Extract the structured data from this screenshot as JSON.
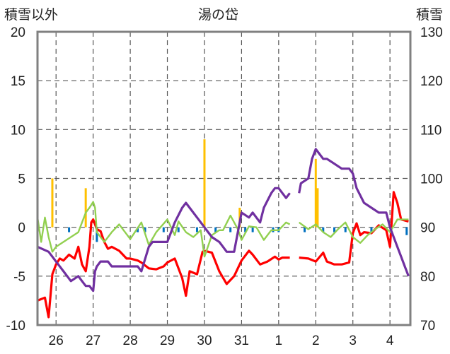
{
  "chart_data": {
    "type": "line",
    "title": "湯の岱",
    "ylabel_left": "積雪以外",
    "ylabel_right": "積雪",
    "xtick_labels": [
      "26",
      "27",
      "28",
      "29",
      "30",
      "31",
      "1",
      "2",
      "3",
      "4"
    ],
    "ylim_left": [
      -10,
      20
    ],
    "ylim_right": [
      70,
      130
    ],
    "yticks_left": [
      20,
      15,
      10,
      5,
      0,
      -5,
      -10
    ],
    "yticks_right": [
      130,
      120,
      110,
      100,
      90,
      80,
      70
    ],
    "grid": true,
    "colors": {
      "red": "#ff0000",
      "green": "#92d050",
      "purple": "#7030a0",
      "orange": "#ffc000",
      "blue": "#0070c0",
      "frame": "#808080"
    },
    "series": [
      {
        "color": "red",
        "axis": "left",
        "x": [
          25.5,
          25.7,
          25.8,
          25.9,
          26.0,
          26.1,
          26.2,
          26.35,
          26.5,
          26.6,
          26.7,
          26.8,
          26.9,
          26.95,
          27.0,
          27.1,
          27.2,
          27.3,
          27.4,
          27.5,
          27.7,
          27.9,
          28.0,
          28.2,
          28.3,
          28.5,
          28.7,
          28.9,
          29.0,
          29.2,
          29.4,
          29.5,
          29.6,
          29.8,
          29.95,
          30.0,
          30.2,
          30.4,
          30.6,
          30.8,
          31.0,
          31.2,
          31.3,
          31.5,
          31.7,
          31.9,
          32.0,
          32.1,
          32.3
        ],
        "y": [
          -7.5,
          -7.2,
          -9.2,
          -4.8,
          -3.8,
          -3.2,
          -3.4,
          -2.8,
          -3.2,
          -2.0,
          -3.8,
          -4.5,
          -2.0,
          0.5,
          0.8,
          -0.2,
          -0.4,
          -1.5,
          -2.2,
          -2.0,
          -2.4,
          -3.2,
          -3.2,
          -3.4,
          -3.6,
          -4.2,
          -4.3,
          -4.0,
          -3.6,
          -3.2,
          -5.2,
          -7.0,
          -4.5,
          -4.8,
          -2.5,
          -2.4,
          -2.6,
          -4.5,
          -5.8,
          -5.0,
          -3.4,
          -2.4,
          -2.8,
          -3.8,
          -3.5,
          -3.0,
          -3.3,
          -3.1,
          -3.1
        ]
      },
      {
        "color": "red",
        "axis": "left",
        "x": [
          32.55,
          32.8,
          33.0,
          33.2,
          33.3,
          33.5,
          33.7,
          33.9,
          34.0,
          34.1,
          34.2,
          34.3,
          34.5,
          34.7,
          34.9,
          35.0,
          35.1,
          35.2,
          35.3,
          35.5
        ],
        "y": [
          -3.1,
          -3.2,
          -3.5,
          -2.6,
          -3.5,
          -3.8,
          -3.8,
          -3.6,
          -0.6,
          0.4,
          -0.8,
          -0.5,
          -0.6,
          0.2,
          -0.3,
          -2.0,
          3.6,
          2.5,
          0.8,
          0.6
        ]
      },
      {
        "color": "green",
        "axis": "left",
        "x": [
          25.5,
          25.6,
          25.7,
          25.8,
          25.9,
          26.0,
          26.2,
          26.4,
          26.6,
          26.8,
          26.9,
          27.0,
          27.05,
          27.1,
          27.2,
          27.3,
          27.5,
          27.7,
          28.0,
          28.3,
          28.5,
          28.7,
          29.0,
          29.2,
          29.3,
          29.5,
          29.7,
          29.9,
          30.0,
          30.2,
          30.4,
          30.5,
          30.7,
          30.9,
          31.0,
          31.2,
          31.4,
          31.6,
          31.8,
          32.0,
          32.2,
          32.3
        ],
        "y": [
          1.0,
          -1.5,
          1.0,
          -1.0,
          -2.5,
          -2.0,
          -1.5,
          -1.0,
          -0.5,
          1.5,
          2.0,
          2.6,
          2.0,
          -0.5,
          -1.0,
          -1.5,
          -0.5,
          0.3,
          -1.2,
          0.5,
          -1.8,
          -0.5,
          0.8,
          -0.8,
          0.6,
          -0.5,
          -1.0,
          -0.3,
          -3.0,
          -0.8,
          -0.3,
          -0.3,
          1.2,
          -0.2,
          -1.3,
          0.1,
          0.0,
          -1.3,
          -0.3,
          -0.3,
          0.5,
          0.3
        ]
      },
      {
        "color": "green",
        "axis": "left",
        "x": [
          32.55,
          32.8,
          33.0,
          33.2,
          33.4,
          33.6,
          33.8,
          34.0,
          34.2,
          34.4,
          34.6,
          34.8,
          35.0,
          35.2,
          35.5
        ],
        "y": [
          0.5,
          -0.2,
          0.3,
          -0.5,
          -1.0,
          -0.2,
          0.5,
          -1.0,
          -1.6,
          -0.8,
          -0.2,
          0.3,
          -0.5,
          0.8,
          0.8
        ]
      },
      {
        "color": "purple",
        "axis": "right",
        "x": [
          25.5,
          25.8,
          26.0,
          26.2,
          26.4,
          26.6,
          26.7,
          26.8,
          26.9,
          27.0,
          27.05,
          27.1,
          27.2,
          27.4,
          27.5,
          27.7,
          28.0,
          28.2,
          28.3,
          28.5,
          28.6,
          28.8,
          28.9,
          29.0,
          29.2,
          29.4,
          29.5,
          29.6,
          29.8,
          30.0,
          30.1,
          30.2,
          30.4,
          30.5,
          30.6,
          30.8,
          31.0,
          31.2,
          31.3,
          31.5,
          31.6,
          31.8,
          31.9,
          32.0,
          32.2,
          32.3
        ],
        "y": [
          86,
          85,
          83,
          81,
          79,
          80,
          79,
          78,
          78,
          77,
          81,
          82,
          83,
          83,
          82,
          82,
          82,
          82,
          81,
          86,
          87,
          87,
          87,
          87,
          91,
          94,
          95,
          94,
          92,
          90,
          89,
          88,
          87,
          86,
          85,
          85,
          93,
          92,
          93,
          91,
          94,
          97,
          98,
          98,
          96,
          97
        ]
      },
      {
        "color": "purple",
        "axis": "right",
        "x": [
          32.55,
          32.6,
          32.8,
          32.9,
          33.0,
          33.1,
          33.2,
          33.3,
          33.5,
          33.7,
          33.9,
          34.0,
          34.1,
          34.3,
          34.5,
          34.7,
          34.9,
          35.0,
          35.2,
          35.3,
          35.4,
          35.5
        ],
        "y": [
          97,
          99,
          100,
          104,
          106,
          105,
          104,
          104,
          103,
          102,
          102,
          101,
          98,
          95,
          94,
          93,
          93,
          90,
          86,
          84,
          82,
          80
        ]
      }
    ],
    "bars_orange": {
      "axis": "left",
      "x": [
        25.9,
        26.8,
        30.0,
        30.95,
        33.0,
        33.05
      ],
      "values": [
        5.0,
        4.0,
        9.0,
        2.0,
        7.0,
        4.0
      ]
    },
    "bars_blue": {
      "axis": "left",
      "x": [
        26.35,
        27.1,
        28.2,
        28.4,
        28.9,
        29.3,
        29.8,
        30.3,
        30.7,
        31.1,
        31.3,
        31.85,
        32.0,
        32.7,
        33.2,
        33.5,
        33.8,
        34.5,
        35.45
      ],
      "values": [
        -0.5,
        -1.5,
        -0.5,
        -0.5,
        -0.5,
        -0.5,
        -0.5,
        -0.5,
        -0.5,
        -0.5,
        -0.5,
        -0.5,
        -0.5,
        -0.5,
        -0.5,
        -0.5,
        -0.5,
        -0.5,
        -0.8
      ]
    }
  }
}
